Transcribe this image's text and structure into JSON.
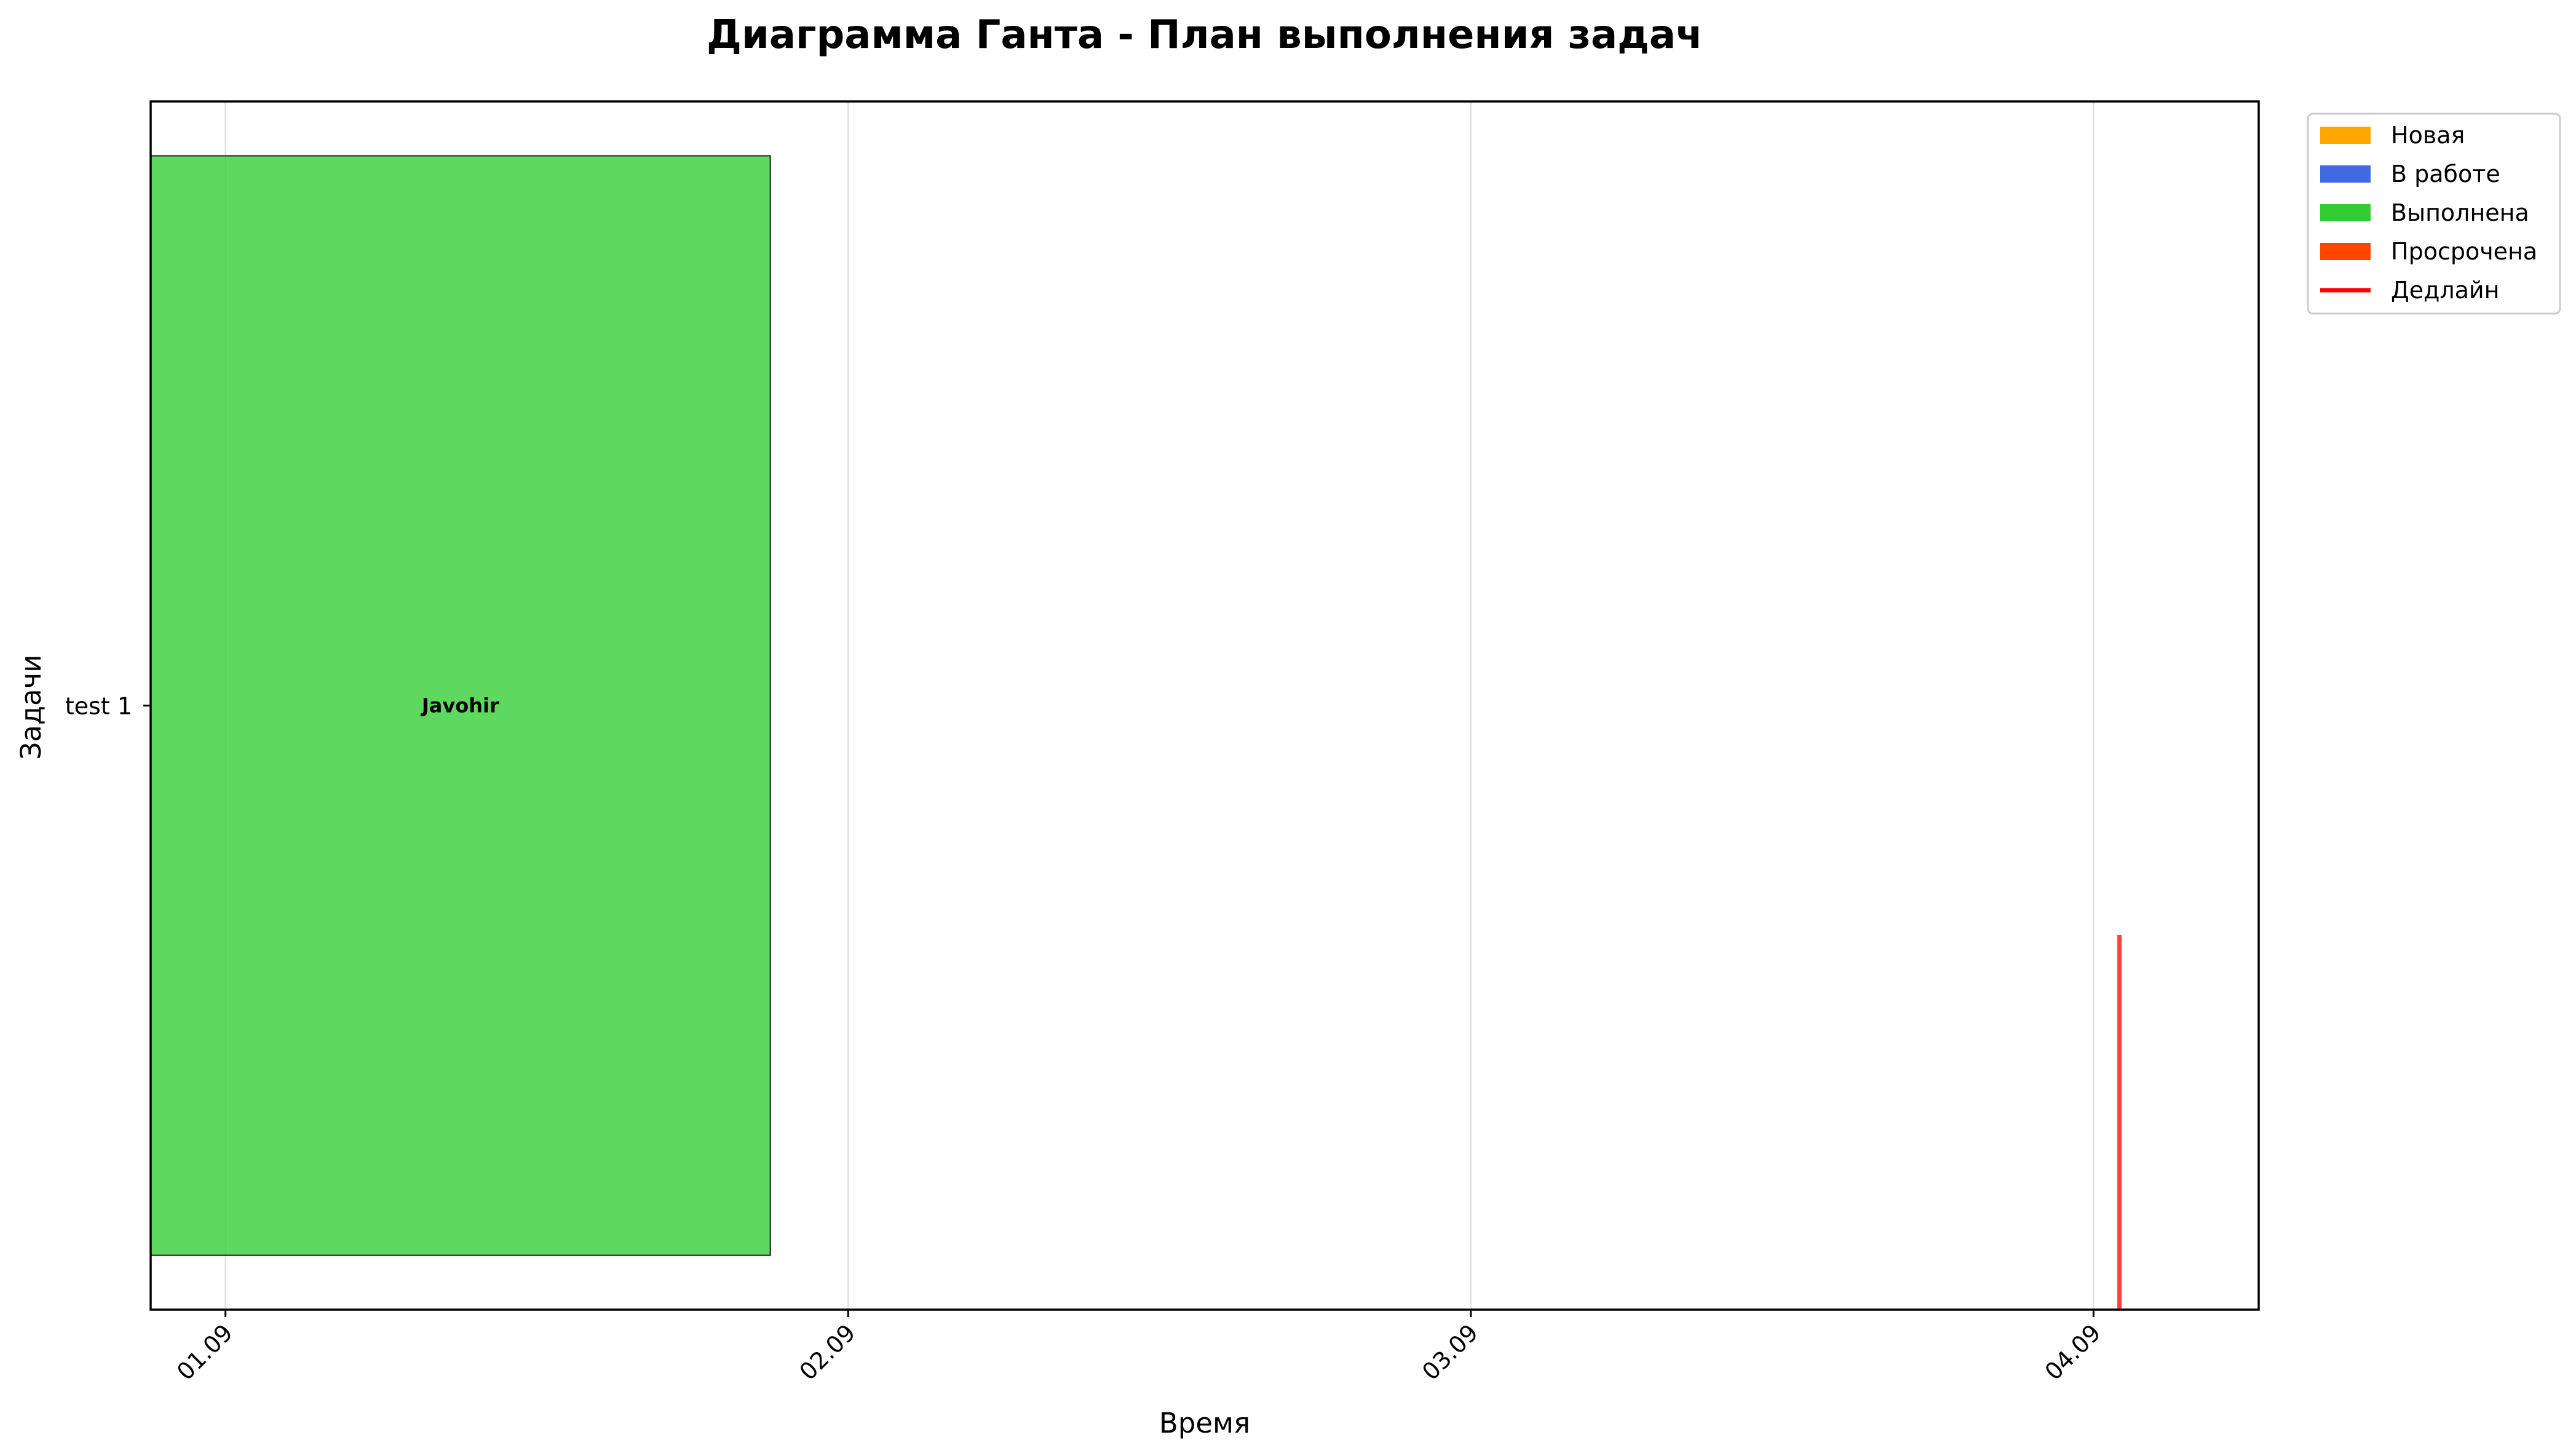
{
  "chart_data": {
    "type": "gantt",
    "title": "Диаграмма Ганта - План выполнения задач",
    "xlabel": "Время",
    "ylabel": "Задачи",
    "x_ticks": [
      "01.09",
      "02.09",
      "03.09",
      "04.09"
    ],
    "x_tick_dates": [
      "09-01",
      "09-02",
      "09-03",
      "09-04"
    ],
    "xlim": [
      "08-31 21:07",
      "09-04 06:22"
    ],
    "grid": "vertical",
    "legend_position": "upper right, outside plot",
    "legend": [
      {
        "label": "Новая",
        "color": "#ffa500",
        "kind": "patch"
      },
      {
        "label": "В работе",
        "color": "#4169e1",
        "kind": "patch"
      },
      {
        "label": "Выполнена",
        "color": "#32cd32",
        "kind": "patch"
      },
      {
        "label": "Просрочена",
        "color": "#ff4500",
        "kind": "patch"
      },
      {
        "label": "Дедлайн",
        "color": "#ff0000",
        "kind": "line"
      }
    ],
    "tasks": [
      {
        "name": "test 1",
        "assignee": "Javohir",
        "status": "Выполнена",
        "color": "#32cd32",
        "start": "08-31 21:07",
        "end": "09-01 21:00",
        "deadline": "09-04 01:00"
      }
    ]
  }
}
